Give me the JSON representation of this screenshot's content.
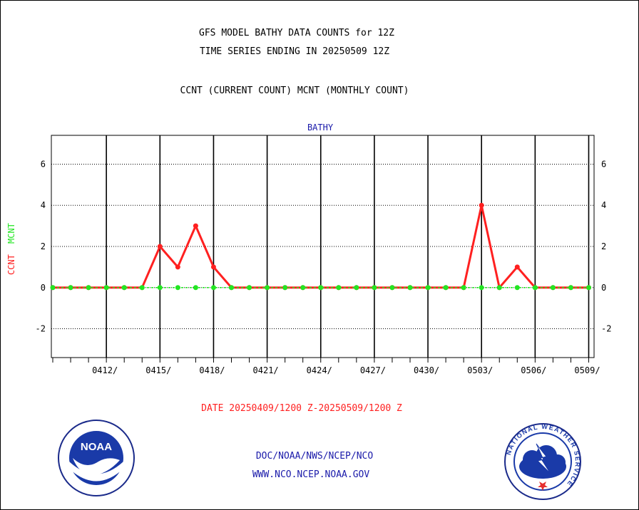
{
  "header": {
    "title_line1": "GFS MODEL BATHY DATA COUNTS for 12Z",
    "title_line2": "TIME SERIES ENDING IN 20250509 12Z",
    "subtitle": "CCNT (CURRENT COUNT) MCNT (MONTHLY COUNT)"
  },
  "footer": {
    "date_range": "DATE 20250409/1200 Z-20250509/1200 Z",
    "org_path": "DOC/NOAA/NWS/NCEP/NCO",
    "website": "WWW.NCO.NCEP.NOAA.GOV"
  },
  "logos": {
    "noaa_text": "NOAA",
    "nws_ring_text": "NATIONAL WEATHER SERVICE"
  },
  "colors": {
    "ccnt": "#ff2020",
    "mcnt": "#22e622",
    "panel_title": "#1a1aaa",
    "footer_blue": "#1a1aaa",
    "date_red": "#ff2020"
  },
  "chart_data": {
    "type": "line",
    "panel_title": "BATHY",
    "ylabel_ccnt": "CCNT",
    "ylabel_mcnt": "MCNT",
    "ylim": [
      -3.4,
      7.4
    ],
    "yticks": [
      -2,
      0,
      2,
      4,
      6
    ],
    "ytick_labels": [
      "-2",
      "0",
      "2",
      "4",
      "6"
    ],
    "xticks_labels": [
      "0412/",
      "0415/",
      "0418/",
      "0421/",
      "0424/",
      "0427/",
      "0430/",
      "0503/",
      "0506/",
      "0509/"
    ],
    "xtick_days": [
      3,
      6,
      9,
      12,
      15,
      18,
      21,
      24,
      27,
      30
    ],
    "x_days": [
      0,
      1,
      2,
      3,
      4,
      5,
      6,
      7,
      8,
      9,
      10,
      11,
      12,
      13,
      14,
      15,
      16,
      17,
      18,
      19,
      20,
      21,
      22,
      23,
      24,
      25,
      26,
      27,
      28,
      29,
      30
    ],
    "series": [
      {
        "name": "CCNT",
        "values": [
          0,
          0,
          0,
          0,
          0,
          0,
          2,
          1,
          3,
          1,
          0,
          0,
          0,
          0,
          0,
          0,
          0,
          0,
          0,
          0,
          0,
          0,
          0,
          0,
          4,
          0,
          1,
          0,
          0,
          0,
          0
        ]
      },
      {
        "name": "MCNT",
        "values": [
          0,
          0,
          0,
          0,
          0,
          0,
          0,
          0,
          0,
          0,
          0,
          0,
          0,
          0,
          0,
          0,
          0,
          0,
          0,
          0,
          0,
          0,
          0,
          0,
          0,
          0,
          0,
          0,
          0,
          0,
          0
        ]
      }
    ],
    "grid": true
  }
}
